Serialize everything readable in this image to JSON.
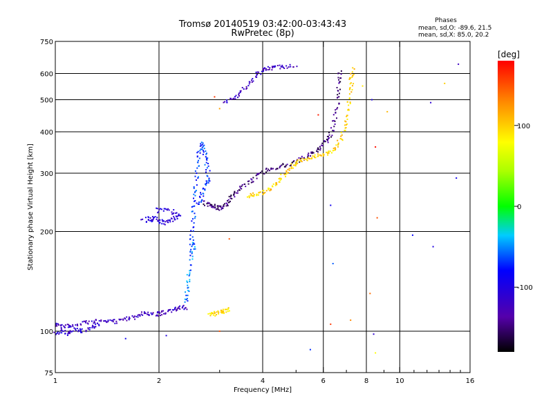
{
  "chart_data": {
    "type": "scatter",
    "title": "Tromsø 20140519 03:42:00-03:43:43",
    "subtitle": "RwPretec (8p)",
    "xlabel": "Frequency [MHz]",
    "ylabel": "Stationary phase Virtual Height [km]",
    "x_scale": "log",
    "y_scale": "log",
    "xlim": [
      1,
      16
    ],
    "ylim": [
      75,
      750
    ],
    "x_ticks": [
      1,
      2,
      4,
      6,
      8,
      10,
      16
    ],
    "y_ticks": [
      75,
      100,
      200,
      300,
      400,
      500,
      600,
      750
    ],
    "x_grid": [
      2,
      4,
      6,
      8,
      10
    ],
    "y_grid": [
      100,
      200,
      300,
      400,
      500,
      600
    ],
    "legend": {
      "title": "Phases",
      "line1": "mean, sd,O: -89.6, 21.5",
      "line2": "mean, sd,X:  85.0, 20.2"
    },
    "colorbar": {
      "label": "[deg]",
      "range": [
        -180,
        180
      ],
      "ticks": [
        100,
        0,
        -100
      ]
    },
    "traces": [
      {
        "phase": -120,
        "points": [
          [
            1.0,
            105
          ],
          [
            1.05,
            103
          ],
          [
            1.1,
            104
          ],
          [
            1.2,
            106
          ],
          [
            1.3,
            107
          ],
          [
            1.4,
            108
          ],
          [
            1.5,
            107
          ],
          [
            1.6,
            109
          ],
          [
            1.7,
            110
          ],
          [
            1.8,
            113
          ],
          [
            1.9,
            112
          ],
          [
            2.0,
            113
          ],
          [
            2.1,
            114
          ],
          [
            2.2,
            116
          ],
          [
            2.3,
            118
          ],
          [
            2.4,
            118
          ]
        ]
      },
      {
        "phase": -110,
        "points": [
          [
            1.0,
            99
          ],
          [
            1.05,
            100
          ],
          [
            1.1,
            98
          ],
          [
            1.15,
            101
          ],
          [
            1.2,
            100
          ],
          [
            1.3,
            103
          ],
          [
            1.35,
            105
          ]
        ]
      },
      {
        "phase": -70,
        "points": [
          [
            2.45,
            170
          ],
          [
            2.5,
            200
          ],
          [
            2.52,
            230
          ],
          [
            2.55,
            260
          ],
          [
            2.58,
            300
          ],
          [
            2.6,
            340
          ],
          [
            2.65,
            370
          ],
          [
            2.7,
            350
          ],
          [
            2.75,
            320
          ],
          [
            2.8,
            290
          ],
          [
            2.7,
            270
          ],
          [
            2.65,
            250
          ],
          [
            2.6,
            240
          ]
        ]
      },
      {
        "phase": -55,
        "points": [
          [
            2.4,
            122
          ],
          [
            2.42,
            135
          ],
          [
            2.45,
            150
          ],
          [
            2.5,
            175
          ],
          [
            2.55,
            190
          ]
        ]
      },
      {
        "phase": -105,
        "points": [
          [
            1.8,
            215
          ],
          [
            1.9,
            220
          ],
          [
            2.0,
            215
          ],
          [
            2.1,
            212
          ],
          [
            2.2,
            218
          ],
          [
            2.3,
            222
          ],
          [
            2.15,
            232
          ],
          [
            2.0,
            235
          ],
          [
            1.9,
            210
          ]
        ]
      },
      {
        "phase": -150,
        "points": [
          [
            2.7,
            245
          ],
          [
            2.8,
            240
          ],
          [
            2.9,
            238
          ],
          [
            3.0,
            235
          ],
          [
            3.1,
            238
          ],
          [
            3.2,
            250
          ],
          [
            3.3,
            260
          ],
          [
            3.5,
            272
          ],
          [
            3.7,
            285
          ],
          [
            3.9,
            298
          ],
          [
            4.1,
            305
          ],
          [
            4.4,
            312
          ],
          [
            4.7,
            318
          ],
          [
            5.0,
            325
          ],
          [
            5.3,
            335
          ],
          [
            5.6,
            345
          ],
          [
            5.9,
            360
          ],
          [
            6.1,
            375
          ],
          [
            6.3,
            395
          ],
          [
            6.5,
            440
          ],
          [
            6.6,
            500
          ],
          [
            6.65,
            560
          ],
          [
            6.7,
            620
          ]
        ]
      },
      {
        "phase": -120,
        "points": [
          [
            3.1,
            490
          ],
          [
            3.3,
            505
          ],
          [
            3.5,
            530
          ],
          [
            3.7,
            570
          ],
          [
            3.9,
            600
          ],
          [
            4.1,
            620
          ],
          [
            4.3,
            625
          ],
          [
            4.6,
            628
          ],
          [
            5.0,
            630
          ]
        ]
      },
      {
        "phase": 100,
        "points": [
          [
            3.6,
            255
          ],
          [
            3.8,
            258
          ],
          [
            4.0,
            262
          ],
          [
            4.2,
            268
          ],
          [
            4.4,
            280
          ],
          [
            4.6,
            295
          ],
          [
            4.8,
            310
          ],
          [
            5.0,
            322
          ],
          [
            5.3,
            330
          ],
          [
            5.6,
            335
          ],
          [
            5.9,
            340
          ],
          [
            6.2,
            345
          ],
          [
            6.5,
            360
          ],
          [
            6.8,
            385
          ],
          [
            7.0,
            420
          ],
          [
            7.1,
            470
          ],
          [
            7.2,
            530
          ],
          [
            7.25,
            580
          ],
          [
            7.3,
            620
          ]
        ]
      },
      {
        "phase": 95,
        "points": [
          [
            2.8,
            112
          ],
          [
            2.9,
            113
          ],
          [
            3.0,
            114
          ],
          [
            3.1,
            115
          ],
          [
            3.2,
            117
          ]
        ]
      }
    ],
    "scatter": [
      {
        "x": 2.9,
        "y": 510,
        "phase": 160
      },
      {
        "x": 3.0,
        "y": 470,
        "phase": 120
      },
      {
        "x": 3.2,
        "y": 190,
        "phase": 150
      },
      {
        "x": 5.8,
        "y": 450,
        "phase": 170
      },
      {
        "x": 6.3,
        "y": 240,
        "phase": -90
      },
      {
        "x": 6.4,
        "y": 160,
        "phase": -60
      },
      {
        "x": 7.8,
        "y": 550,
        "phase": 90
      },
      {
        "x": 8.3,
        "y": 500,
        "phase": -100
      },
      {
        "x": 8.5,
        "y": 360,
        "phase": 175
      },
      {
        "x": 8.6,
        "y": 220,
        "phase": 150
      },
      {
        "x": 9.2,
        "y": 460,
        "phase": 110
      },
      {
        "x": 10.9,
        "y": 195,
        "phase": -80
      },
      {
        "x": 12.3,
        "y": 490,
        "phase": -110
      },
      {
        "x": 12.5,
        "y": 180,
        "phase": -100
      },
      {
        "x": 13.5,
        "y": 560,
        "phase": 100
      },
      {
        "x": 14.8,
        "y": 640,
        "phase": -120
      },
      {
        "x": 14.6,
        "y": 290,
        "phase": -90
      },
      {
        "x": 8.4,
        "y": 98,
        "phase": -110
      },
      {
        "x": 8.5,
        "y": 86,
        "phase": 80
      },
      {
        "x": 5.5,
        "y": 88,
        "phase": -70
      },
      {
        "x": 8.2,
        "y": 130,
        "phase": 140
      },
      {
        "x": 7.2,
        "y": 108,
        "phase": 130
      },
      {
        "x": 6.3,
        "y": 105,
        "phase": 160
      },
      {
        "x": 3.0,
        "y": 100,
        "phase": 150
      },
      {
        "x": 2.1,
        "y": 97,
        "phase": -100
      },
      {
        "x": 1.6,
        "y": 95,
        "phase": -90
      }
    ]
  }
}
